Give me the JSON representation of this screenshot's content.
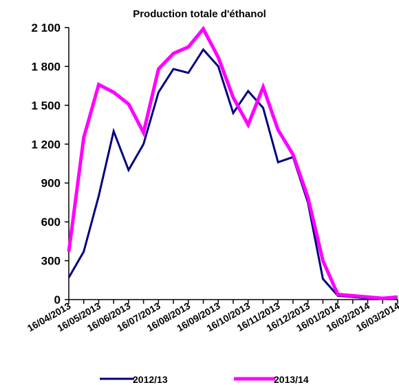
{
  "chart_data": {
    "type": "line",
    "title": "Production totale d'éthanol",
    "xlabel": "",
    "ylabel": "",
    "ylim": [
      0,
      2100
    ],
    "y_ticks": [
      0,
      300,
      600,
      900,
      1200,
      1500,
      1800,
      2100
    ],
    "y_tick_labels": [
      "0",
      "300",
      "600",
      "900",
      "1 200",
      "1 500",
      "1 800",
      "2 100"
    ],
    "x_tick_labels": [
      "16/04/2013",
      "16/05/2013",
      "16/06/2013",
      "16/07/2013",
      "16/08/2013",
      "16/09/2013",
      "16/10/2013",
      "16/11/2013",
      "16/12/2013",
      "16/01/2014",
      "16/02/2014",
      "16/03/2014"
    ],
    "x_points_per_label": 2,
    "grid": false,
    "legend_position": "bottom",
    "series": [
      {
        "name": "2012/13",
        "color": "#000080",
        "values": [
          170,
          370,
          800,
          1300,
          1000,
          1200,
          1600,
          1780,
          1750,
          1930,
          1800,
          1440,
          1610,
          1480,
          1060,
          1100,
          750,
          160,
          30,
          20,
          10,
          5,
          10
        ]
      },
      {
        "name": "2013/14",
        "color": "#ff00ff",
        "values": [
          370,
          1250,
          1660,
          1600,
          1510,
          1290,
          1780,
          1900,
          1950,
          2090,
          1870,
          1560,
          1350,
          1640,
          1310,
          1120,
          790,
          300,
          40,
          30,
          20,
          10,
          20
        ]
      }
    ]
  }
}
